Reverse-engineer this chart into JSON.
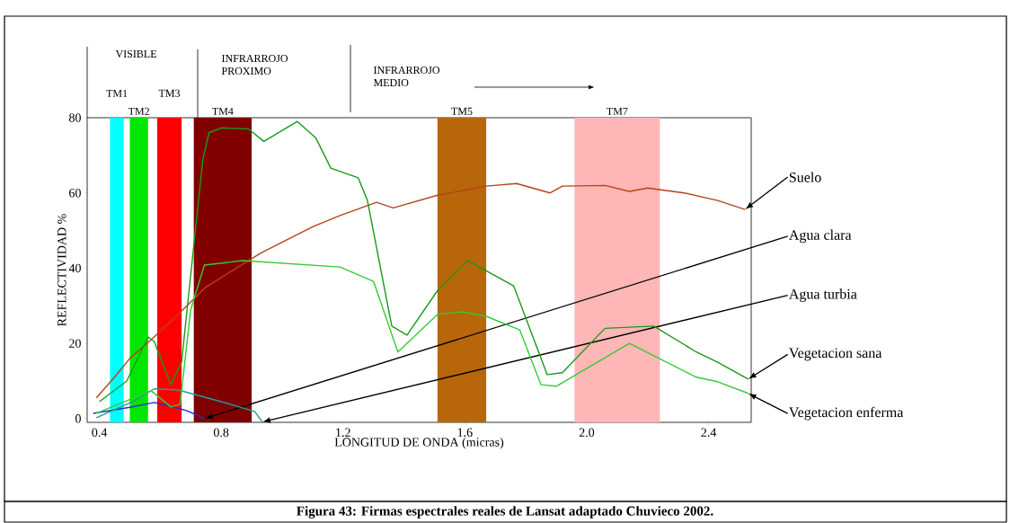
{
  "chart_data": {
    "type": "line",
    "xlabel": "LONGITUD DE ONDA (micras)",
    "ylabel": "REFLECTIVIDAD %",
    "xlim": [
      0.36,
      2.54
    ],
    "ylim": [
      -1,
      80
    ],
    "xticks": [
      0.4,
      0.8,
      1.2,
      1.6,
      {
        "value": 2.0,
        "label": "2.0"
      },
      2.4
    ],
    "yticks": [
      0,
      20,
      40,
      60,
      80
    ],
    "grid": false,
    "legend": false,
    "marker": "none",
    "line_style": "solid",
    "series": [
      {
        "name": "Suelo",
        "color": "#b5441a",
        "x": [
          0.39,
          0.45,
          0.5,
          0.57,
          0.65,
          0.75,
          0.93,
          1.1,
          1.19,
          1.31,
          1.365,
          1.51,
          1.67,
          1.77,
          1.88,
          1.92,
          2.06,
          2.14,
          2.2,
          2.32,
          2.43,
          2.52
        ],
        "values": [
          5.5,
          11,
          16,
          21,
          27,
          35,
          44,
          51,
          54,
          57.5,
          56,
          59.4,
          61.8,
          62.5,
          60,
          61.8,
          62,
          60.4,
          61.3,
          60,
          58,
          55.6
        ]
      },
      {
        "name": "Agua clara",
        "color": "#1f2fd0",
        "x": [
          0.38,
          0.5,
          0.58,
          0.635,
          0.69,
          0.745
        ],
        "values": [
          1.4,
          3,
          4.3,
          3.3,
          2,
          0
        ]
      },
      {
        "name": "Agua turbia",
        "color": "#2a9696",
        "x": [
          0.39,
          0.51,
          0.58,
          0.66,
          0.7,
          0.8,
          0.91,
          0.935
        ],
        "values": [
          0.2,
          4.5,
          7.9,
          7.6,
          6.7,
          4.5,
          1.9,
          -0.9
        ]
      },
      {
        "name": "Vegetacion sana",
        "color": "#1a9a1a",
        "x": [
          0.4,
          0.49,
          0.56,
          0.58,
          0.635,
          0.67,
          0.71,
          0.74,
          0.76,
          0.8,
          0.89,
          0.94,
          1.05,
          1.11,
          1.16,
          1.25,
          1.28,
          1.36,
          1.41,
          1.51,
          1.61,
          1.76,
          1.87,
          1.92,
          2.06,
          2.22,
          2.36,
          2.43,
          2.53
        ],
        "values": [
          4.5,
          10,
          21.7,
          20.5,
          9,
          15,
          46,
          69,
          76,
          77.3,
          77,
          73.7,
          79,
          74.7,
          66.6,
          64,
          58,
          24.6,
          22.2,
          34,
          42,
          35.3,
          11.7,
          12.2,
          24,
          24.6,
          17.7,
          15,
          10.5
        ]
      },
      {
        "name": "Vegetacion enferma",
        "color": "#33cc33",
        "x": [
          0.39,
          0.57,
          0.635,
          0.665,
          0.7,
          0.745,
          0.87,
          1.19,
          1.3,
          1.38,
          1.51,
          1.59,
          1.67,
          1.78,
          1.85,
          1.9,
          2.14,
          2.36,
          2.43,
          2.53
        ],
        "values": [
          1.4,
          7.4,
          3.1,
          3.8,
          29,
          40.8,
          42,
          40.3,
          36.5,
          17.7,
          27.7,
          28.4,
          27.2,
          23.6,
          9,
          8.6,
          20,
          11,
          9.8,
          6.7
        ]
      }
    ],
    "bands": [
      {
        "axis": "x",
        "from": 0.435,
        "to": 0.48,
        "label": "TM1",
        "color": "#00ffff"
      },
      {
        "axis": "x",
        "from": 0.5,
        "to": 0.56,
        "label": "TM2",
        "color": "#00e600"
      },
      {
        "axis": "x",
        "from": 0.59,
        "to": 0.67,
        "label": "TM3",
        "color": "#ff0000"
      },
      {
        "axis": "x",
        "from": 0.71,
        "to": 0.9,
        "label": "TM4",
        "color": "#800000"
      },
      {
        "axis": "x",
        "from": 1.51,
        "to": 1.67,
        "label": "TM5",
        "color": "#b8660a"
      },
      {
        "axis": "x",
        "from": 1.96,
        "to": 2.24,
        "label": "TM7",
        "color": "#ffb6b6"
      }
    ],
    "annotations": [
      "VISIBLE",
      "INFRARROJO PROXIMO",
      "INFRARROJO MEDIO",
      "Figura 43: Firmas espectrales reales de Lansat adaptado Chuvieco 2002."
    ]
  }
}
